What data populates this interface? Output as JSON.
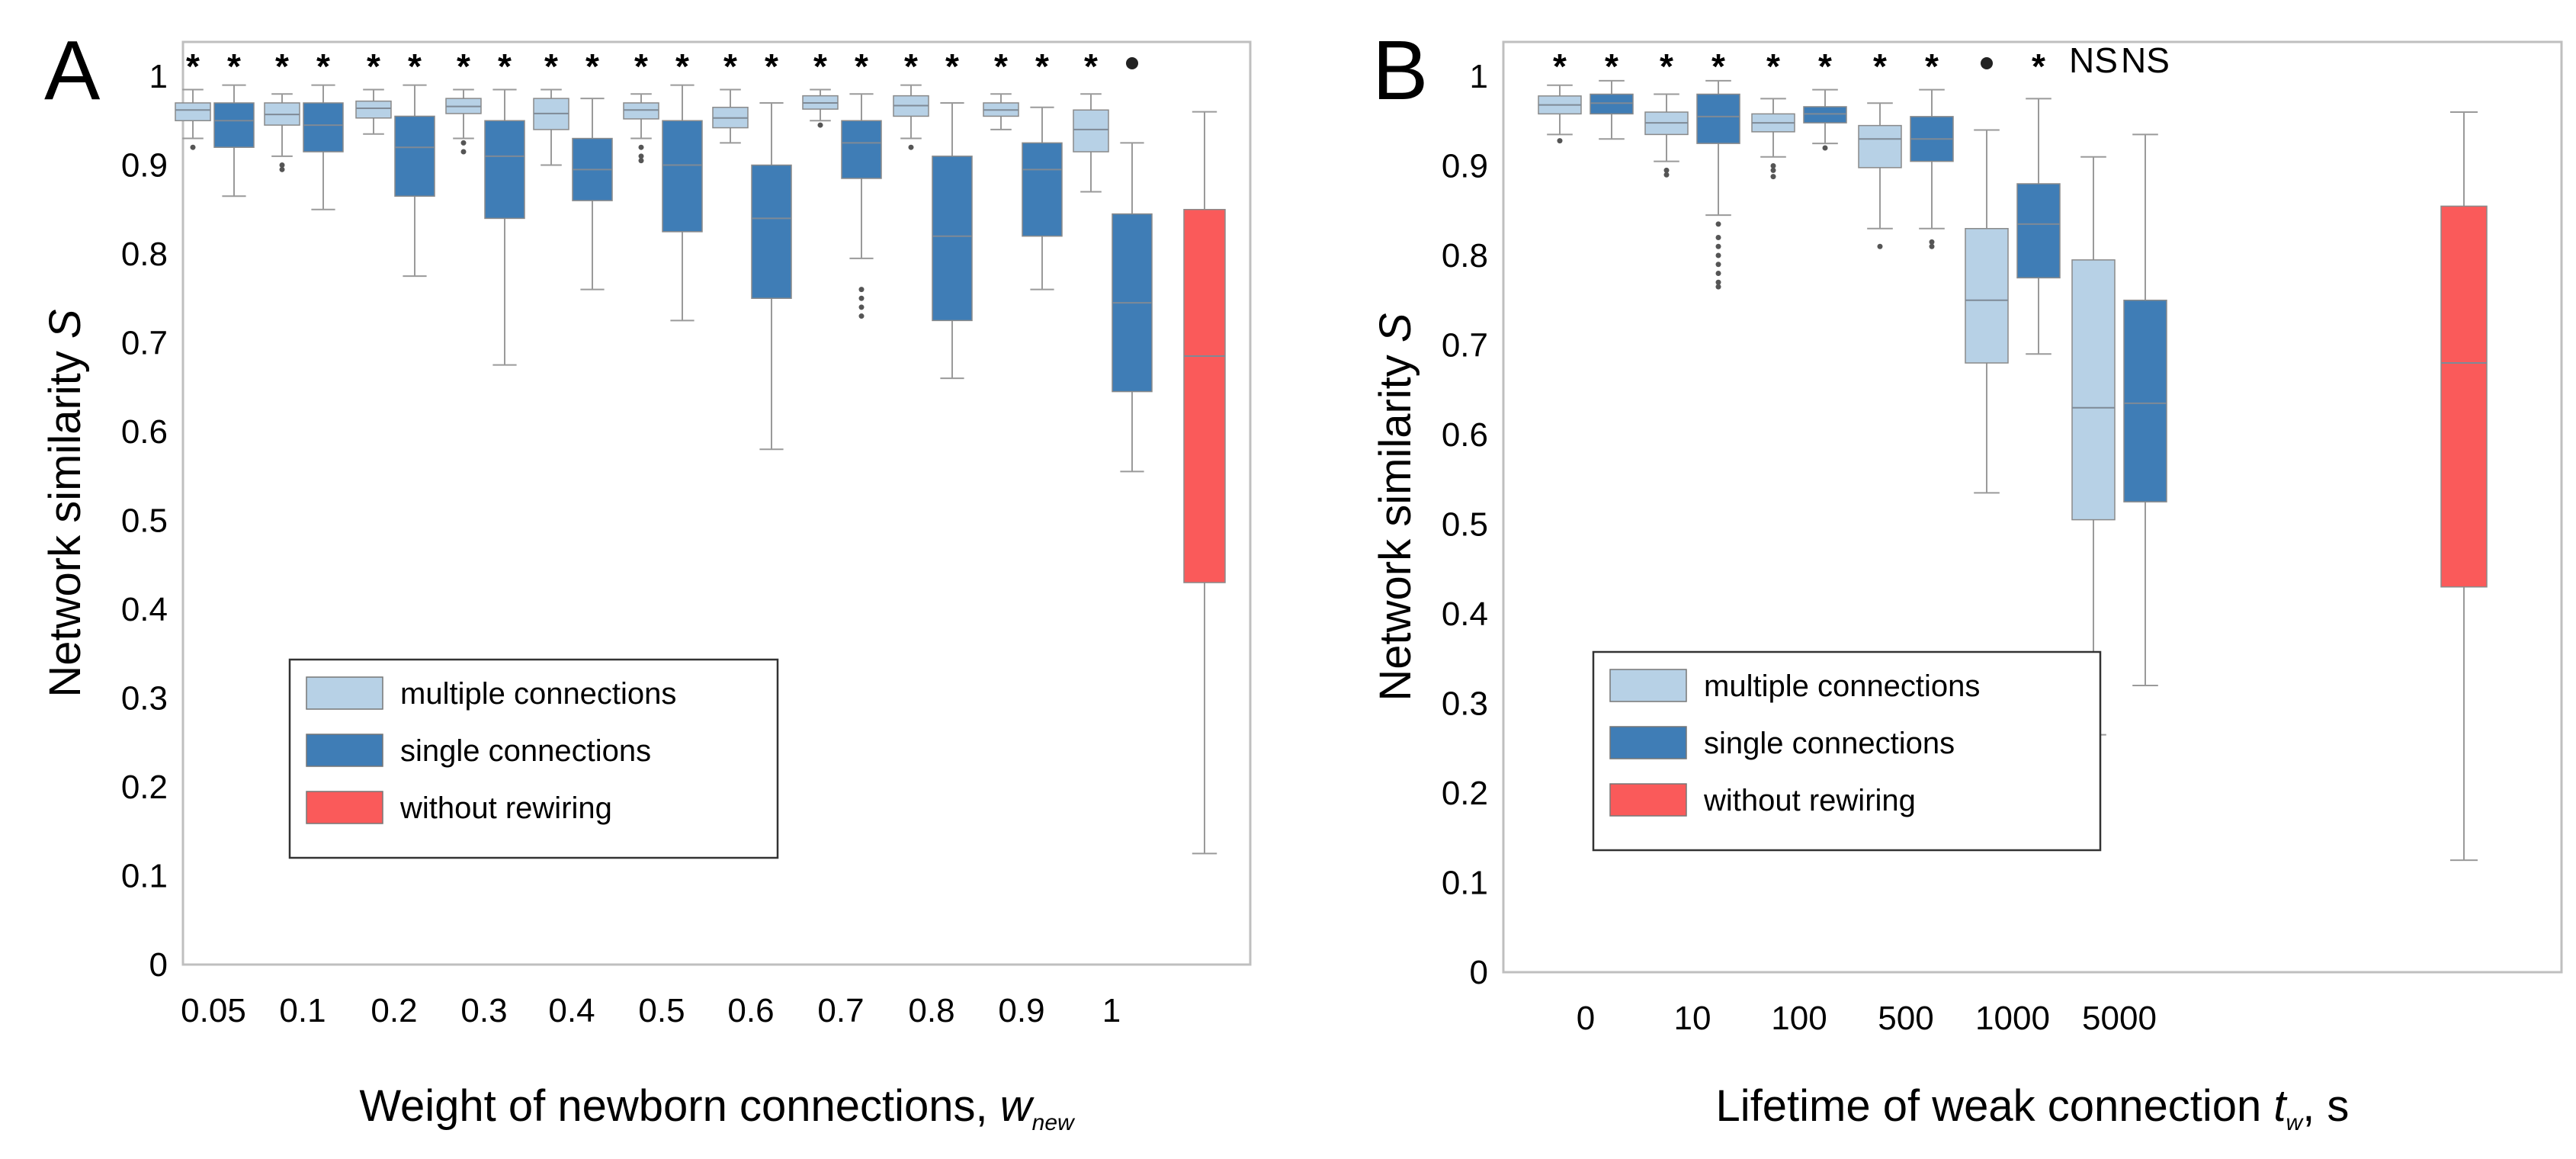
{
  "colors": {
    "multiple": "#b7d1e6",
    "single": "#3f7db6",
    "without": "#fa5a5a",
    "frame": "#bfbfbf",
    "whisker": "#9a9a9a"
  },
  "chart_data": [
    {
      "type": "box",
      "panel_label": "A",
      "xlabel": "Weight of newborn connections, ",
      "xlabel_symbol": "w",
      "xlabel_subscript": "new",
      "ylabel": "Network similarity ",
      "ylabel_symbol": "S",
      "ylim": [
        0,
        1
      ],
      "yticks": [
        "0",
        "0.1",
        "0.2",
        "0.3",
        "0.4",
        "0.5",
        "0.6",
        "0.7",
        "0.8",
        "0.9",
        "1"
      ],
      "categories": [
        "0.05",
        "0.1",
        "0.2",
        "0.3",
        "0.4",
        "0.5",
        "0.6",
        "0.7",
        "0.8",
        "0.9",
        "1"
      ],
      "legend": {
        "position": "bottom-left",
        "entries": [
          "multiple connections",
          "single connections",
          "without rewiring"
        ]
      },
      "series": [
        {
          "name": "multiple connections",
          "boxes": [
            {
              "min": 0.93,
              "q1": 0.95,
              "median": 0.962,
              "q3": 0.97,
              "max": 0.985,
              "outliers": [
                0.92
              ]
            },
            {
              "min": 0.91,
              "q1": 0.945,
              "median": 0.957,
              "q3": 0.97,
              "max": 0.98,
              "outliers": [
                0.9,
                0.895
              ]
            },
            {
              "min": 0.935,
              "q1": 0.953,
              "median": 0.964,
              "q3": 0.972,
              "max": 0.985,
              "outliers": []
            },
            {
              "min": 0.93,
              "q1": 0.958,
              "median": 0.966,
              "q3": 0.975,
              "max": 0.985,
              "outliers": [
                0.925,
                0.915
              ]
            },
            {
              "min": 0.9,
              "q1": 0.94,
              "median": 0.958,
              "q3": 0.975,
              "max": 0.985,
              "outliers": []
            },
            {
              "min": 0.93,
              "q1": 0.952,
              "median": 0.962,
              "q3": 0.97,
              "max": 0.98,
              "outliers": [
                0.92,
                0.91,
                0.905
              ]
            },
            {
              "min": 0.925,
              "q1": 0.942,
              "median": 0.953,
              "q3": 0.965,
              "max": 0.985,
              "outliers": []
            },
            {
              "min": 0.95,
              "q1": 0.963,
              "median": 0.97,
              "q3": 0.978,
              "max": 0.985,
              "outliers": [
                0.945
              ]
            },
            {
              "min": 0.93,
              "q1": 0.955,
              "median": 0.967,
              "q3": 0.978,
              "max": 0.99,
              "outliers": [
                0.92
              ]
            },
            {
              "min": 0.94,
              "q1": 0.955,
              "median": 0.962,
              "q3": 0.97,
              "max": 0.98,
              "outliers": []
            },
            {
              "min": 0.87,
              "q1": 0.915,
              "median": 0.94,
              "q3": 0.962,
              "max": 0.98,
              "outliers": []
            }
          ]
        },
        {
          "name": "single connections",
          "boxes": [
            {
              "min": 0.865,
              "q1": 0.92,
              "median": 0.95,
              "q3": 0.97,
              "max": 0.99,
              "outliers": []
            },
            {
              "min": 0.85,
              "q1": 0.915,
              "median": 0.945,
              "q3": 0.97,
              "max": 0.99,
              "outliers": []
            },
            {
              "min": 0.775,
              "q1": 0.865,
              "median": 0.92,
              "q3": 0.955,
              "max": 0.99,
              "outliers": []
            },
            {
              "min": 0.675,
              "q1": 0.84,
              "median": 0.91,
              "q3": 0.95,
              "max": 0.985,
              "outliers": []
            },
            {
              "min": 0.76,
              "q1": 0.86,
              "median": 0.895,
              "q3": 0.93,
              "max": 0.975,
              "outliers": []
            },
            {
              "min": 0.725,
              "q1": 0.825,
              "median": 0.9,
              "q3": 0.95,
              "max": 0.99,
              "outliers": []
            },
            {
              "min": 0.58,
              "q1": 0.75,
              "median": 0.84,
              "q3": 0.9,
              "max": 0.97,
              "outliers": []
            },
            {
              "min": 0.795,
              "q1": 0.885,
              "median": 0.925,
              "q3": 0.95,
              "max": 0.98,
              "outliers": [
                0.76,
                0.75,
                0.74,
                0.73
              ]
            },
            {
              "min": 0.66,
              "q1": 0.725,
              "median": 0.82,
              "q3": 0.91,
              "max": 0.97,
              "outliers": []
            },
            {
              "min": 0.76,
              "q1": 0.82,
              "median": 0.895,
              "q3": 0.925,
              "max": 0.965,
              "outliers": []
            },
            {
              "min": 0.555,
              "q1": 0.645,
              "median": 0.745,
              "q3": 0.845,
              "max": 0.925,
              "outliers": []
            }
          ]
        },
        {
          "name": "without rewiring",
          "boxes": [
            {
              "min": 0.125,
              "q1": 0.43,
              "median": 0.685,
              "q3": 0.85,
              "max": 0.96,
              "outliers": []
            }
          ]
        }
      ],
      "significance": {
        "multiple": [
          "*",
          "*",
          "*",
          "*",
          "*",
          "*",
          "*",
          "*",
          "*",
          "*",
          "*"
        ],
        "single": [
          "*",
          "*",
          "*",
          "*",
          "*",
          "*",
          "*",
          "*",
          "*",
          "*",
          "•"
        ]
      }
    },
    {
      "type": "box",
      "panel_label": "B",
      "xlabel": "Lifetime of weak connection ",
      "xlabel_symbol": "t",
      "xlabel_subscript": "w",
      "xlabel_suffix": ", s",
      "ylabel": "Network similarity ",
      "ylabel_symbol": "S",
      "ylim": [
        0,
        1
      ],
      "yticks": [
        "0",
        "0.1",
        "0.2",
        "0.3",
        "0.4",
        "0.5",
        "0.6",
        "0.7",
        "0.8",
        "0.9",
        "1"
      ],
      "categories": [
        "0",
        "10",
        "100",
        "500",
        "1000",
        "5000"
      ],
      "legend": {
        "position": "bottom-left",
        "entries": [
          "multiple connections",
          "single connections",
          "without rewiring"
        ]
      },
      "series": [
        {
          "name": "multiple connections",
          "boxes": [
            {
              "min": 0.935,
              "q1": 0.958,
              "median": 0.968,
              "q3": 0.978,
              "max": 0.99,
              "outliers": [
                0.928
              ]
            },
            {
              "min": 0.905,
              "q1": 0.935,
              "median": 0.948,
              "q3": 0.96,
              "max": 0.98,
              "outliers": [
                0.895,
                0.89
              ]
            },
            {
              "min": 0.91,
              "q1": 0.938,
              "median": 0.948,
              "q3": 0.958,
              "max": 0.975,
              "outliers": [
                0.9,
                0.895,
                0.888
              ]
            },
            {
              "min": 0.83,
              "q1": 0.898,
              "median": 0.93,
              "q3": 0.945,
              "max": 0.97,
              "outliers": [
                0.81
              ]
            },
            {
              "min": 0.535,
              "q1": 0.68,
              "median": 0.75,
              "q3": 0.83,
              "max": 0.94,
              "outliers": []
            },
            {
              "min": 0.265,
              "q1": 0.505,
              "median": 0.63,
              "q3": 0.795,
              "max": 0.91,
              "outliers": []
            }
          ]
        },
        {
          "name": "single connections",
          "boxes": [
            {
              "min": 0.93,
              "q1": 0.958,
              "median": 0.97,
              "q3": 0.98,
              "max": 0.995,
              "outliers": []
            },
            {
              "min": 0.845,
              "q1": 0.925,
              "median": 0.955,
              "q3": 0.98,
              "max": 0.995,
              "outliers": [
                0.835,
                0.82,
                0.81,
                0.8,
                0.79,
                0.78,
                0.77,
                0.765
              ]
            },
            {
              "min": 0.925,
              "q1": 0.948,
              "median": 0.958,
              "q3": 0.966,
              "max": 0.985,
              "outliers": [
                0.92
              ]
            },
            {
              "min": 0.83,
              "q1": 0.905,
              "median": 0.93,
              "q3": 0.955,
              "max": 0.985,
              "outliers": [
                0.815,
                0.81
              ]
            },
            {
              "min": 0.69,
              "q1": 0.775,
              "median": 0.835,
              "q3": 0.88,
              "max": 0.975,
              "outliers": []
            },
            {
              "min": 0.32,
              "q1": 0.525,
              "median": 0.635,
              "q3": 0.75,
              "max": 0.935,
              "outliers": []
            }
          ]
        },
        {
          "name": "without rewiring",
          "boxes": [
            {
              "min": 0.125,
              "q1": 0.43,
              "median": 0.68,
              "q3": 0.855,
              "max": 0.96,
              "outliers": []
            }
          ]
        }
      ],
      "significance": {
        "multiple": [
          "*",
          "*",
          "*",
          "*",
          "•",
          "NS"
        ],
        "single": [
          "*",
          "*",
          "*",
          "*",
          "*",
          "NS"
        ]
      }
    }
  ]
}
